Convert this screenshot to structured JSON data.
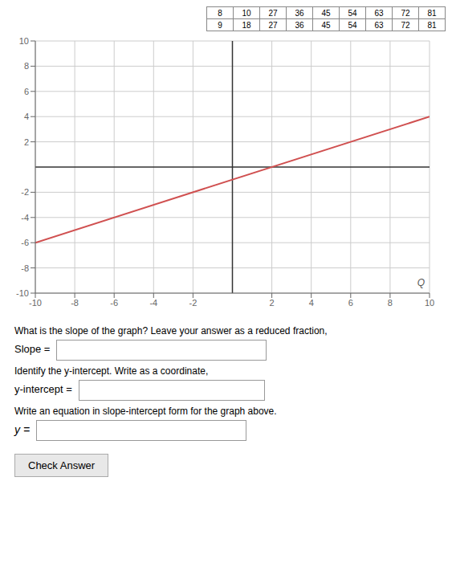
{
  "chart_data": {
    "type": "line",
    "x": [
      -10,
      10
    ],
    "series": [
      {
        "values": [
          -6,
          4
        ],
        "color": "#d05050"
      }
    ],
    "xlim": [
      -10,
      10
    ],
    "ylim": [
      -10,
      10
    ],
    "xticks": [
      -10,
      -8,
      -6,
      -4,
      -2,
      2,
      4,
      6,
      8,
      10
    ],
    "yticks": [
      -10,
      -8,
      -6,
      -4,
      -2,
      2,
      4,
      6,
      8,
      10
    ],
    "grid": true,
    "annotations": [
      "Q",
      "What is the slope of the graph? Leave your answer as a reduced fraction,",
      "Slope =",
      "Identify the y-intercept. Write as a coordinate,",
      "y-intercept =",
      "Write an equation in slope-intercept form for the graph above.",
      "y =",
      "Check Answer"
    ],
    "table": [
      [
        8,
        10,
        27,
        36,
        45,
        54,
        63,
        72,
        81
      ],
      [
        9,
        18,
        27,
        36,
        45,
        54,
        63,
        72,
        81
      ]
    ]
  }
}
